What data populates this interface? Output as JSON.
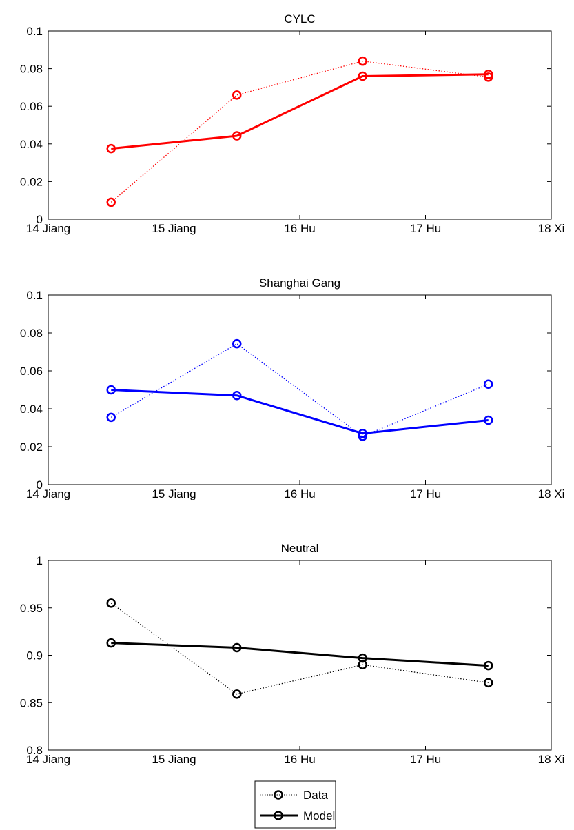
{
  "chart_data": [
    {
      "type": "line",
      "title": "CYLC",
      "x_tick_labels": [
        "14 Jiang",
        "15 Jiang",
        "16 Hu",
        "17 Hu",
        "18 Xi"
      ],
      "xlim": [
        14,
        18
      ],
      "x": [
        14.5,
        15.5,
        16.5,
        17.5
      ],
      "ylim": [
        0,
        0.1
      ],
      "y_tick_labels": [
        "0",
        "0.02",
        "0.04",
        "0.06",
        "0.08",
        "0.1"
      ],
      "color": "#ff0000",
      "series": [
        {
          "name": "Data",
          "style": "dotted",
          "values": [
            0.009,
            0.066,
            0.084,
            0.0755
          ]
        },
        {
          "name": "Model",
          "style": "solid",
          "values": [
            0.0375,
            0.0443,
            0.076,
            0.077
          ]
        }
      ]
    },
    {
      "type": "line",
      "title": "Shanghai Gang",
      "x_tick_labels": [
        "14 Jiang",
        "15 Jiang",
        "16 Hu",
        "17 Hu",
        "18 Xi"
      ],
      "xlim": [
        14,
        18
      ],
      "x": [
        14.5,
        15.5,
        16.5,
        17.5
      ],
      "ylim": [
        0,
        0.1
      ],
      "y_tick_labels": [
        "0",
        "0.02",
        "0.04",
        "0.06",
        "0.08",
        "0.1"
      ],
      "color": "#0000ff",
      "series": [
        {
          "name": "Data",
          "style": "dotted",
          "values": [
            0.0355,
            0.0743,
            0.0255,
            0.053
          ]
        },
        {
          "name": "Model",
          "style": "solid",
          "values": [
            0.05,
            0.047,
            0.027,
            0.034
          ]
        }
      ]
    },
    {
      "type": "line",
      "title": "Neutral",
      "x_tick_labels": [
        "14 Jiang",
        "15 Jiang",
        "16 Hu",
        "17 Hu",
        "18 Xi"
      ],
      "xlim": [
        14,
        18
      ],
      "x": [
        14.5,
        15.5,
        16.5,
        17.5
      ],
      "ylim": [
        0.8,
        1
      ],
      "y_tick_labels": [
        "0.8",
        "0.85",
        "0.9",
        "0.95",
        "1"
      ],
      "color": "#000000",
      "series": [
        {
          "name": "Data",
          "style": "dotted",
          "values": [
            0.955,
            0.859,
            0.89,
            0.871
          ]
        },
        {
          "name": "Model",
          "style": "solid",
          "values": [
            0.913,
            0.908,
            0.897,
            0.889
          ]
        }
      ]
    }
  ],
  "legend": {
    "placement": "bottom-center",
    "entries": [
      {
        "label": "Data",
        "style": "dotted"
      },
      {
        "label": "Model",
        "style": "solid"
      }
    ]
  }
}
